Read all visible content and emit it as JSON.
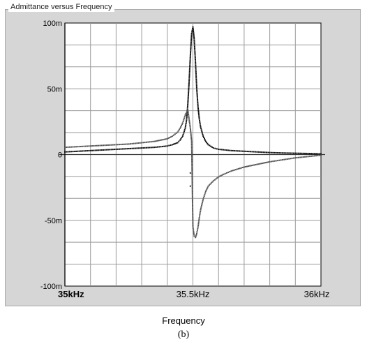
{
  "panel": {
    "title": "Admittance versus Frequency"
  },
  "caption": "(b)",
  "chart_data": {
    "type": "scatter",
    "title": "Admittance versus Frequency",
    "xlabel": "Frequency",
    "ylabel": "",
    "xlim": [
      35000,
      36000
    ],
    "ylim": [
      -100,
      100
    ],
    "x_unit": "Hz",
    "y_unit": "milli (m)",
    "x_ticks": [
      {
        "value": 35000,
        "label": "35kHz"
      },
      {
        "value": 35500,
        "label": "35.5kHz"
      },
      {
        "value": 36000,
        "label": "36kHz"
      }
    ],
    "y_ticks": [
      {
        "value": 100,
        "label": "100m"
      },
      {
        "value": 50,
        "label": "50m"
      },
      {
        "value": 0,
        "label": "0"
      },
      {
        "value": -50,
        "label": "-50m"
      },
      {
        "value": -100,
        "label": "-100m"
      }
    ],
    "grid": true,
    "grid_x_step": 100,
    "grid_y_step": 16.67,
    "legend": "none",
    "series": [
      {
        "color": "#111111",
        "x": [
          35000,
          35050,
          35100,
          35150,
          35200,
          35250,
          35300,
          35350,
          35400,
          35420,
          35440,
          35450,
          35460,
          35470,
          35475,
          35480,
          35485,
          35490,
          35495,
          35500,
          35505,
          35510,
          35515,
          35520,
          35525,
          35530,
          35540,
          35550,
          35560,
          35580,
          35600,
          35650,
          35700,
          35750,
          35800,
          35850,
          35900,
          35950,
          36000
        ],
        "y": [
          2,
          2.5,
          3,
          3.5,
          4,
          4.5,
          5,
          5.5,
          6.5,
          7.5,
          9,
          11,
          14,
          20,
          26,
          38,
          55,
          75,
          92,
          97,
          88,
          70,
          50,
          36,
          27,
          21,
          14,
          10,
          7.5,
          5,
          4,
          3,
          2.5,
          2,
          1.5,
          1.2,
          1,
          0.8,
          0.5
        ]
      },
      {
        "color": "#555555",
        "x": [
          35000,
          35050,
          35100,
          35150,
          35200,
          35250,
          35300,
          35350,
          35400,
          35420,
          35440,
          35450,
          35460,
          35470,
          35480,
          35490,
          35495,
          35500,
          35505,
          35510,
          35515,
          35520,
          35525,
          35530,
          35540,
          35550,
          35560,
          35580,
          35600,
          35620,
          35650,
          35700,
          35750,
          35800,
          35850,
          35900,
          35950,
          36000
        ],
        "y": [
          5.5,
          6,
          6.5,
          7,
          7.5,
          8,
          9,
          10,
          12,
          14,
          17,
          20,
          24,
          30,
          34,
          20,
          10,
          -55,
          -62,
          -63,
          -60,
          -55,
          -48,
          -42,
          -34,
          -28,
          -24,
          -20,
          -17,
          -15,
          -12.5,
          -9.5,
          -7.5,
          -5.5,
          -4,
          -2.5,
          -1.5,
          -0.5
        ]
      }
    ],
    "outliers": [
      {
        "x": 35490,
        "y": -14
      },
      {
        "x": 35490,
        "y": -24
      }
    ]
  }
}
